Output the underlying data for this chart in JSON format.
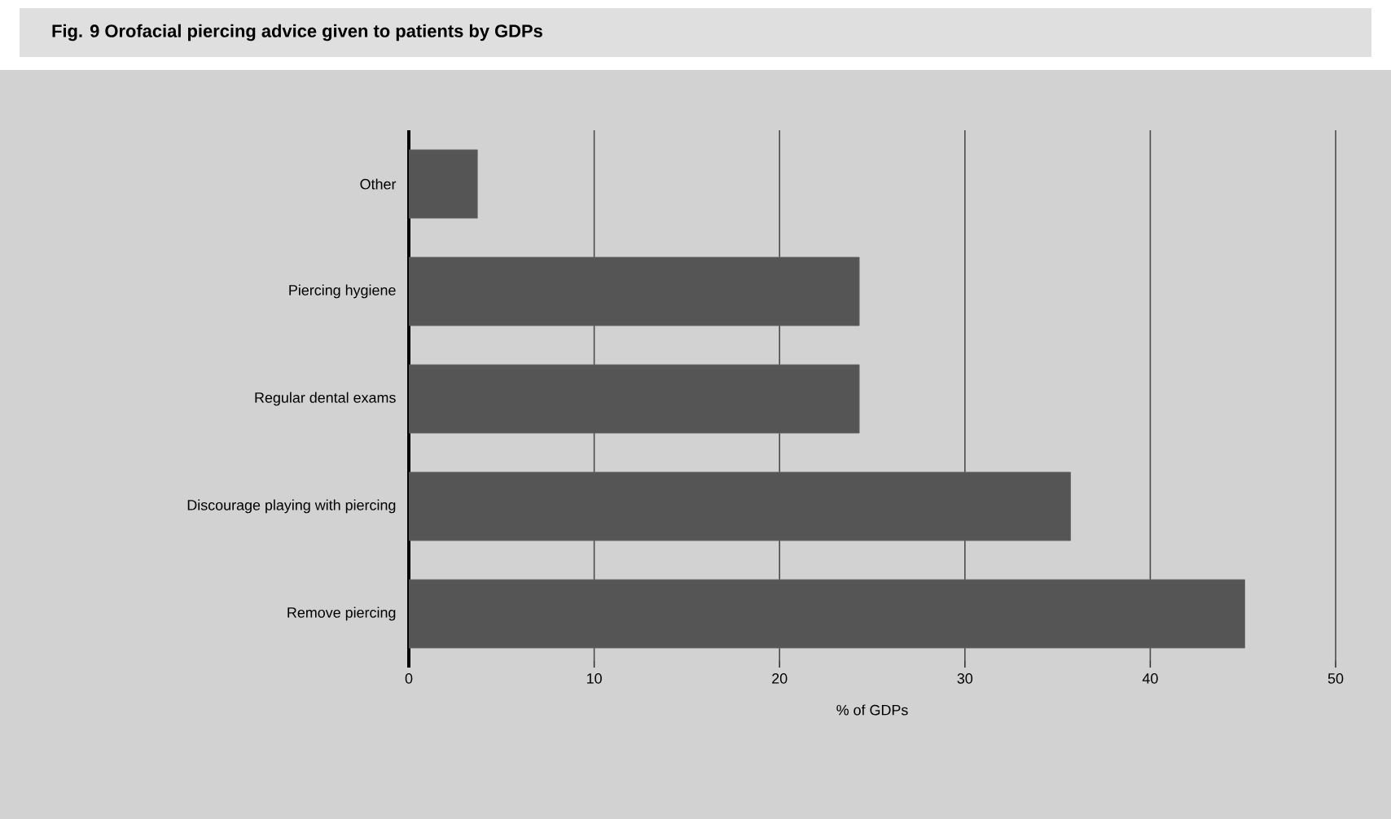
{
  "chart_data": {
    "type": "bar",
    "orientation": "horizontal",
    "title": "Fig. 9  Orofacial piercing advice given to patients by GDPs",
    "categories": [
      "Other",
      "Piercing hygiene",
      "Regular dental exams",
      "Discourage playing with piercing",
      "Remove piercing"
    ],
    "values": [
      3.7,
      24.3,
      24.3,
      35.7,
      45.1
    ],
    "color": "#555555",
    "xlabel": "% of GDPs",
    "xlim": [
      0,
      50
    ],
    "xticks": [
      0,
      10,
      20,
      30,
      40,
      50
    ],
    "grid": "x"
  }
}
